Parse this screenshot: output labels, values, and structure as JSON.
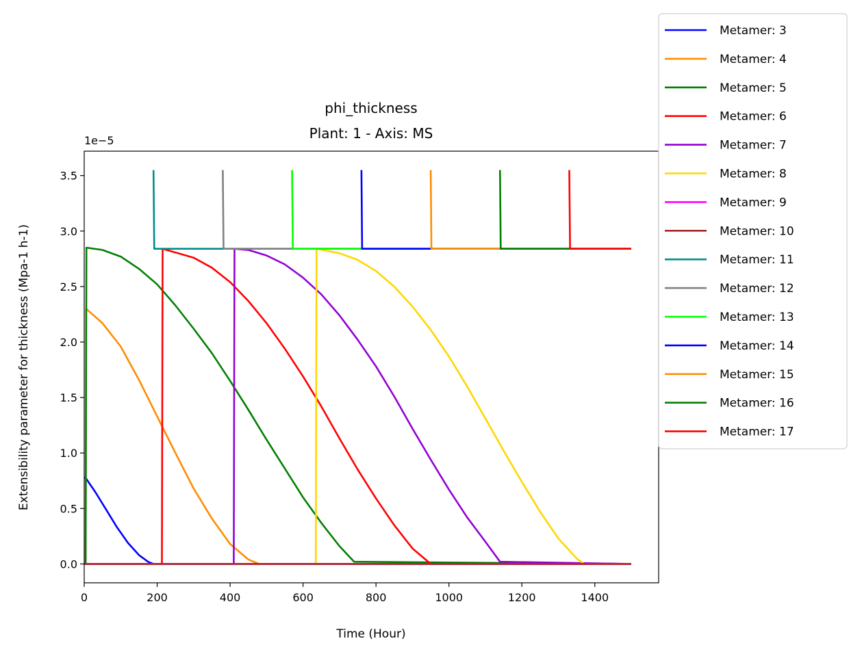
{
  "chart_data": {
    "type": "line",
    "title": "phi_thickness",
    "subtitle": "Plant: 1 - Axis: MS",
    "xlabel": "Time (Hour)",
    "ylabel": "Extensibility parameter  for thickness (Mpa-1 h-1)",
    "y_offset_label": "1e−5",
    "xlim": [
      0,
      1575
    ],
    "ylim": [
      -0.17,
      3.72
    ],
    "x_ticks": [
      0,
      200,
      400,
      600,
      800,
      1000,
      1200,
      1400
    ],
    "x_tick_labels": [
      "0",
      "200",
      "400",
      "600",
      "800",
      "1000",
      "1200",
      "1400"
    ],
    "y_ticks": [
      0.0,
      0.5,
      1.0,
      1.5,
      2.0,
      2.5,
      3.0,
      3.5
    ],
    "y_tick_labels": [
      "0.0",
      "0.5",
      "1.0",
      "1.5",
      "2.0",
      "2.5",
      "3.0",
      "3.5"
    ],
    "grid": false,
    "legend_position": "outside-right",
    "series": [
      {
        "name": "Metamer: 3",
        "color": "#0000ff",
        "x": [
          0,
          5,
          30,
          60,
          90,
          120,
          150,
          175,
          190,
          1500
        ],
        "y": [
          0.78,
          0.77,
          0.65,
          0.49,
          0.33,
          0.19,
          0.08,
          0.02,
          0.0,
          0.0
        ]
      },
      {
        "name": "Metamer: 4",
        "color": "#ff8c00",
        "x": [
          0,
          4,
          5,
          50,
          100,
          150,
          200,
          250,
          300,
          350,
          400,
          450,
          480,
          1500
        ],
        "y": [
          0.0,
          0.0,
          2.3,
          2.17,
          1.96,
          1.66,
          1.33,
          1.0,
          0.68,
          0.41,
          0.18,
          0.04,
          0.0,
          0.0
        ]
      },
      {
        "name": "Metamer: 5",
        "color": "#008000",
        "x": [
          0,
          4,
          6,
          50,
          100,
          150,
          200,
          250,
          300,
          350,
          400,
          450,
          500,
          550,
          600,
          650,
          700,
          740,
          1500
        ],
        "y": [
          0.0,
          0.0,
          2.85,
          2.83,
          2.77,
          2.66,
          2.52,
          2.33,
          2.12,
          1.9,
          1.65,
          1.39,
          1.12,
          0.86,
          0.6,
          0.37,
          0.16,
          0.02,
          0.0
        ]
      },
      {
        "name": "Metamer: 6",
        "color": "#ff0000",
        "x": [
          0,
          213,
          215,
          300,
          350,
          400,
          450,
          500,
          550,
          600,
          650,
          700,
          750,
          800,
          850,
          900,
          950,
          1500
        ],
        "y": [
          0.0,
          0.0,
          2.84,
          2.76,
          2.67,
          2.54,
          2.37,
          2.17,
          1.94,
          1.69,
          1.42,
          1.13,
          0.85,
          0.59,
          0.35,
          0.14,
          0.0,
          0.0
        ]
      },
      {
        "name": "Metamer: 7",
        "color": "#9400d3",
        "x": [
          0,
          410,
          412,
          450,
          500,
          550,
          600,
          650,
          700,
          750,
          800,
          850,
          900,
          950,
          1000,
          1050,
          1100,
          1140,
          1500
        ],
        "y": [
          0.0,
          0.0,
          2.84,
          2.83,
          2.78,
          2.7,
          2.58,
          2.43,
          2.24,
          2.02,
          1.78,
          1.51,
          1.22,
          0.94,
          0.67,
          0.42,
          0.2,
          0.02,
          0.0
        ]
      },
      {
        "name": "Metamer: 8",
        "color": "#ffd700",
        "x": [
          0,
          635,
          637,
          700,
          750,
          800,
          850,
          900,
          950,
          1000,
          1050,
          1100,
          1150,
          1200,
          1250,
          1300,
          1350,
          1370,
          1500
        ],
        "y": [
          0.0,
          0.0,
          2.84,
          2.8,
          2.74,
          2.64,
          2.5,
          2.32,
          2.11,
          1.87,
          1.6,
          1.31,
          1.02,
          0.74,
          0.47,
          0.23,
          0.05,
          0.0,
          0.0
        ]
      },
      {
        "name": "Metamer: 9",
        "color": "#ff00ff",
        "x": [
          0,
          1500
        ],
        "y": [
          0.0,
          0.0
        ]
      },
      {
        "name": "Metamer: 10",
        "color": "#a52a2a",
        "x": [
          0,
          1500
        ],
        "y": [
          0.0,
          0.0
        ]
      },
      {
        "name": "Metamer: 11",
        "color": "#008b8b",
        "x": [
          190,
          192,
          1500
        ],
        "y": [
          3.55,
          2.84,
          2.84
        ]
      },
      {
        "name": "Metamer: 12",
        "color": "#808080",
        "x": [
          380,
          382,
          1500
        ],
        "y": [
          3.55,
          2.84,
          2.84
        ]
      },
      {
        "name": "Metamer: 13",
        "color": "#00ff00",
        "x": [
          570,
          572,
          1500
        ],
        "y": [
          3.55,
          2.84,
          2.84
        ]
      },
      {
        "name": "Metamer: 14",
        "color": "#0000ff",
        "x": [
          760,
          762,
          1500
        ],
        "y": [
          3.55,
          2.84,
          2.84
        ]
      },
      {
        "name": "Metamer: 15",
        "color": "#ff8c00",
        "x": [
          950,
          952,
          1500
        ],
        "y": [
          3.55,
          2.84,
          2.84
        ]
      },
      {
        "name": "Metamer: 16",
        "color": "#008000",
        "x": [
          1140,
          1142,
          1500
        ],
        "y": [
          3.55,
          2.84,
          2.84
        ]
      },
      {
        "name": "Metamer: 17",
        "color": "#ff0000",
        "x": [
          1330,
          1332,
          1500
        ],
        "y": [
          3.55,
          2.84,
          2.84
        ]
      }
    ]
  }
}
